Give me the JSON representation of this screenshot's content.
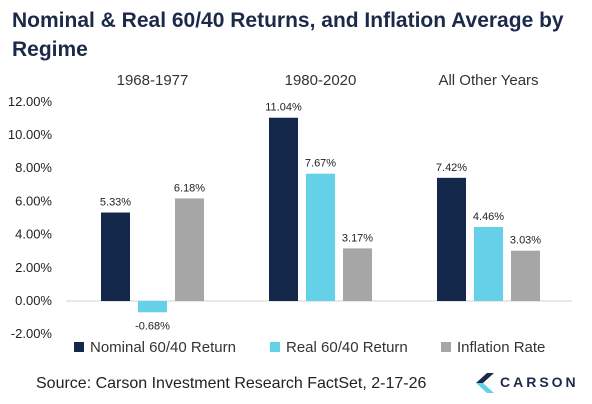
{
  "title": "Nominal & Real 60/40 Returns, and Inflation Average by Regime",
  "source": "Source: Carson Investment Research FactSet, 2-17-26",
  "logo_text": "CARSON",
  "colors": {
    "nominal": "#14284b",
    "real": "#65d1e8",
    "inflation": "#a6a6a6",
    "accent": "#1c2a4a"
  },
  "chart_data": {
    "type": "bar",
    "title": "Nominal & Real 60/40 Returns, and Inflation Average by Regime",
    "categories": [
      "1968-1977",
      "1980-2020",
      "All Other Years"
    ],
    "series": [
      {
        "name": "Nominal 60/40 Return",
        "values": [
          5.33,
          11.04,
          7.42
        ],
        "labels": [
          "5.33%",
          "11.04%",
          "7.42%"
        ]
      },
      {
        "name": "Real 60/40 Return",
        "values": [
          -0.68,
          7.67,
          4.46
        ],
        "labels": [
          "-0.68%",
          "7.67%",
          "4.46%"
        ]
      },
      {
        "name": "Inflation Rate",
        "values": [
          6.18,
          3.17,
          3.03
        ],
        "labels": [
          "6.18%",
          "3.17%",
          "3.03%"
        ]
      }
    ],
    "ylim": [
      -2,
      12
    ],
    "yticks": [
      12,
      10,
      8,
      6,
      4,
      2,
      0,
      -2
    ],
    "ytick_labels": [
      "12.00%",
      "10.00%",
      "8.00%",
      "6.00%",
      "4.00%",
      "2.00%",
      "0.00%",
      "-2.00%"
    ],
    "grid": false,
    "legend": "bottom"
  }
}
